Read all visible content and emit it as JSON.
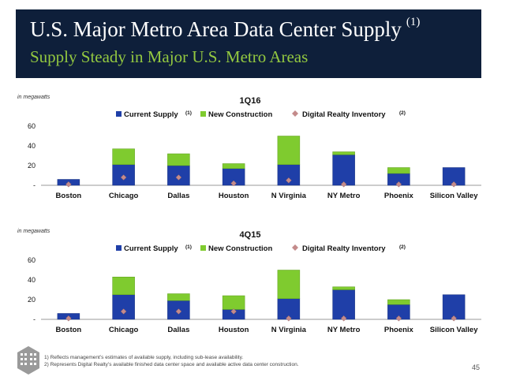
{
  "header": {
    "title": "U.S. Major Metro Area Data Center Supply",
    "title_note": "(1)",
    "subtitle": "Supply Steady in Major U.S. Metro Areas"
  },
  "colors": {
    "current": "#1f3fa8",
    "new": "#7fcb2f",
    "inventory": "#c48b8b",
    "header_bg": "#0e1f3a",
    "subtitle": "#93c840"
  },
  "chart_data": [
    {
      "type": "bar",
      "stacked": true,
      "title": "1Q16",
      "unit_label": "in megawatts",
      "categories": [
        "Boston",
        "Chicago",
        "Dallas",
        "Houston",
        "N Virginia",
        "NY Metro",
        "Phoenix",
        "Silicon Valley"
      ],
      "series": [
        {
          "name": "Current Supply",
          "note": "(1)",
          "values": [
            6,
            21,
            20,
            17,
            21,
            31,
            12,
            18
          ]
        },
        {
          "name": "New Construction",
          "values": [
            0,
            16,
            12,
            5,
            29,
            3,
            6,
            0
          ]
        },
        {
          "name": "Digital Realty Inventory",
          "note": "(2)",
          "marker": "diamond",
          "values": [
            1,
            8,
            8,
            2,
            5,
            1,
            1,
            1
          ]
        }
      ],
      "yticks": [
        "60",
        "40",
        "20",
        "-"
      ],
      "ylim": [
        0,
        60
      ]
    },
    {
      "type": "bar",
      "stacked": true,
      "title": "4Q15",
      "unit_label": "in megawatts",
      "categories": [
        "Boston",
        "Chicago",
        "Dallas",
        "Houston",
        "N Virginia",
        "NY Metro",
        "Phoenix",
        "Silicon Valley"
      ],
      "series": [
        {
          "name": "Current Supply",
          "note": "(1)",
          "values": [
            6,
            25,
            19,
            10,
            21,
            30,
            15,
            25
          ]
        },
        {
          "name": "New Construction",
          "values": [
            0,
            18,
            7,
            14,
            29,
            3,
            5,
            0
          ]
        },
        {
          "name": "Digital Realty Inventory",
          "note": "(2)",
          "marker": "diamond",
          "values": [
            1,
            8,
            8,
            8,
            1,
            1,
            1,
            1
          ]
        }
      ],
      "yticks": [
        "60",
        "40",
        "20",
        "-"
      ],
      "ylim": [
        0,
        60
      ]
    }
  ],
  "footnotes": [
    "1) Reflects management’s estimates of available supply, including sub-lease availability.",
    "2) Represents Digital Realty’s available finished data center space and available active data center construction."
  ],
  "page_number": "45"
}
